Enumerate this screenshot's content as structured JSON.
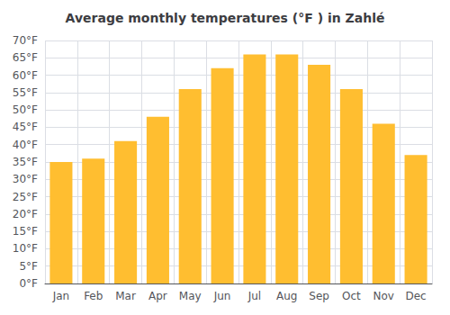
{
  "chart_data": {
    "type": "bar",
    "title": "Average monthly temperatures (°F ) in Zahlé",
    "categories": [
      "Jan",
      "Feb",
      "Mar",
      "Apr",
      "May",
      "Jun",
      "Jul",
      "Aug",
      "Sep",
      "Oct",
      "Nov",
      "Dec"
    ],
    "values": [
      35,
      36,
      41,
      48,
      56,
      62,
      66,
      66,
      63,
      56,
      46,
      37
    ],
    "color": "#FFBE30",
    "ylim": [
      0,
      70
    ],
    "yticks": [
      {
        "value": 0,
        "label": "0°F"
      },
      {
        "value": 5,
        "label": "5°F"
      },
      {
        "value": 10,
        "label": "10°F"
      },
      {
        "value": 15,
        "label": "15°F"
      },
      {
        "value": 20,
        "label": "20°F"
      },
      {
        "value": 25,
        "label": "25°F"
      },
      {
        "value": 30,
        "label": "30°F"
      },
      {
        "value": 35,
        "label": "35°F"
      },
      {
        "value": 40,
        "label": "40°F"
      },
      {
        "value": 45,
        "label": "45°F"
      },
      {
        "value": 50,
        "label": "50°F"
      },
      {
        "value": 55,
        "label": "55°F"
      },
      {
        "value": 60,
        "label": "60°F"
      },
      {
        "value": 65,
        "label": "65°F"
      },
      {
        "value": 70,
        "label": "70°F"
      }
    ],
    "grid": true
  }
}
